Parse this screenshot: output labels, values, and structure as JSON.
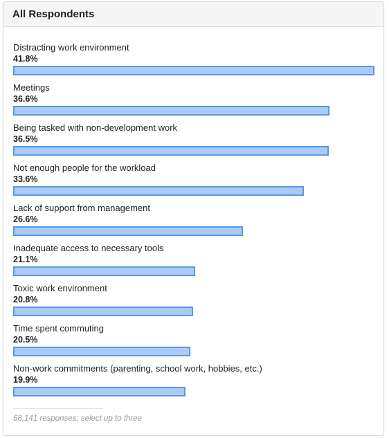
{
  "panel": {
    "title": "All Respondents",
    "footer_note": "68,141 responses; select up to three"
  },
  "colors": {
    "bar_fill": "#a9cbf5",
    "bar_border": "#5b97e0"
  },
  "chart_data": {
    "type": "bar",
    "orientation": "horizontal",
    "categories": [
      "Distracting work environment",
      "Meetings",
      "Being tasked with non-development work",
      "Not enough people for the workload",
      "Lack of support from management",
      "Inadequate access to necessary tools",
      "Toxic work environment",
      "Time spent commuting",
      "Non-work commitments (parenting, school work, hobbies, etc.)"
    ],
    "values": [
      41.8,
      36.6,
      36.5,
      33.6,
      26.6,
      21.1,
      20.8,
      20.5,
      19.9
    ],
    "value_labels": [
      "41.8%",
      "36.6%",
      "36.5%",
      "33.6%",
      "26.6%",
      "21.1%",
      "20.8%",
      "20.5%",
      "19.9%"
    ],
    "unit": "%",
    "xlim": [
      0,
      41.8
    ],
    "grid": false
  }
}
